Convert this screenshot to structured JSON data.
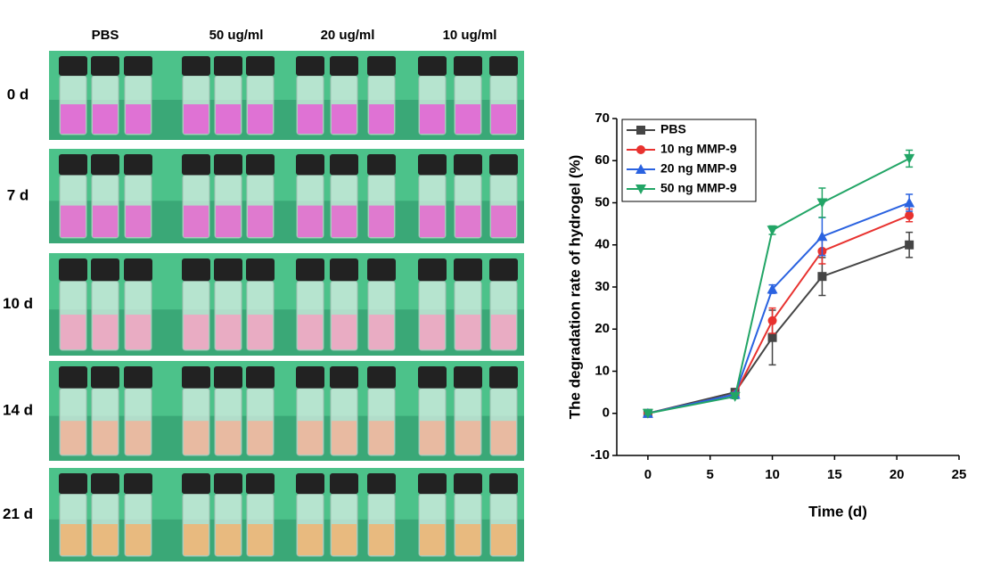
{
  "photo_panel": {
    "columns": [
      "PBS",
      "50 ug/ml",
      "20 ug/ml",
      "10 ug/ml"
    ],
    "rows": [
      "0 d",
      "7 d",
      "10 d",
      "14 d",
      "21 d"
    ]
  },
  "chart_data": {
    "type": "line",
    "x_label": "Time (d)",
    "y_label": "The degradation rate of hydrogel (%)",
    "x": [
      0,
      7,
      10,
      14,
      21
    ],
    "series": [
      {
        "name": "PBS",
        "color": "#454545",
        "marker": "square",
        "values": [
          0,
          5,
          18,
          32.5,
          40
        ],
        "errors": [
          0.5,
          0.5,
          6.5,
          4.5,
          3
        ]
      },
      {
        "name": "10 ng MMP-9",
        "color": "#e8322f",
        "marker": "circle",
        "values": [
          0,
          4.5,
          22,
          38.5,
          47
        ],
        "errors": [
          0.3,
          0.5,
          3,
          3,
          1.5
        ]
      },
      {
        "name": "20 ng MMP-9",
        "color": "#2a62e0",
        "marker": "triangle-up",
        "values": [
          0,
          4.5,
          29.5,
          42,
          50
        ],
        "errors": [
          0.3,
          0.5,
          1,
          4.5,
          2
        ]
      },
      {
        "name": "50 ng MMP-9",
        "color": "#22a566",
        "marker": "triangle-down",
        "values": [
          0,
          4,
          43.5,
          50,
          60.5
        ],
        "errors": [
          0.3,
          0.5,
          1,
          3.5,
          2
        ]
      }
    ],
    "xlim": [
      -2.5,
      25
    ],
    "xticks": [
      0,
      5,
      10,
      15,
      20,
      25
    ],
    "ylim": [
      -10,
      70
    ],
    "yticks": [
      -10,
      0,
      10,
      20,
      30,
      40,
      50,
      60,
      70
    ],
    "grid": false,
    "legend": "upper-left"
  }
}
